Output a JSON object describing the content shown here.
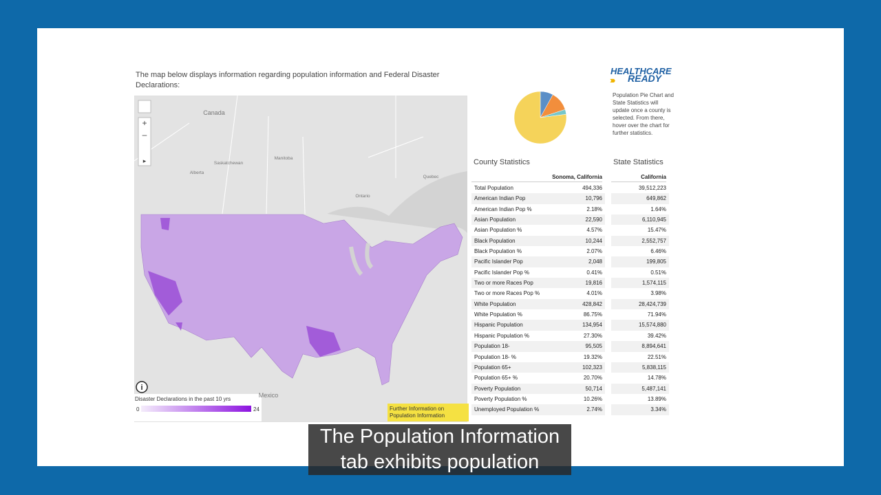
{
  "header": {
    "intro": "The map below displays information regarding population information and Federal Disaster Declarations:"
  },
  "logo": {
    "line1": "HEALTHCARE",
    "line2": "READY"
  },
  "note": "Population Pie Chart and State Statistics will update once a county is selected. From there, hover over the chart for further statistics.",
  "map": {
    "labels": [
      "Canada",
      "Alberta",
      "Saskatchewan",
      "Manitoba",
      "Ontario",
      "Quebec",
      "Mexico"
    ],
    "legend": {
      "title": "Disaster Declarations in the past 10 yrs",
      "min": 0,
      "max": 24
    },
    "button": "Further Information on Population Information"
  },
  "pie": {
    "type": "pie",
    "slices": [
      {
        "color": "#5b8fc7",
        "value": 8
      },
      {
        "color": "#f28e3c",
        "value": 12
      },
      {
        "color": "#76c7c9",
        "value": 3
      },
      {
        "color": "#f5d35a",
        "value": 77
      }
    ]
  },
  "county": {
    "title": "County Statistics",
    "column": "Sonoma, California",
    "rows": [
      [
        "Total Population",
        "494,336"
      ],
      [
        "American Indian Pop",
        "10,796"
      ],
      [
        "American Indian Pop %",
        "2.18%"
      ],
      [
        "Asian Population",
        "22,590"
      ],
      [
        "Asian Population %",
        "4.57%"
      ],
      [
        "Black Population",
        "10,244"
      ],
      [
        "Black Population %",
        "2.07%"
      ],
      [
        "Pacific Islander Pop",
        "2,048"
      ],
      [
        "Pacific Islander Pop %",
        "0.41%"
      ],
      [
        "Two or more Races Pop",
        "19,816"
      ],
      [
        "Two or more Races Pop %",
        "4.01%"
      ],
      [
        "White Population",
        "428,842"
      ],
      [
        "White Population %",
        "86.75%"
      ],
      [
        "Hispanic Population",
        "134,954"
      ],
      [
        "Hispanic Population %",
        "27.30%"
      ],
      [
        "Population 18-",
        "95,505"
      ],
      [
        "Population 18- %",
        "19.32%"
      ],
      [
        "Population 65+",
        "102,323"
      ],
      [
        "Population 65+ %",
        "20.70%"
      ],
      [
        "Poverty Population",
        "50,714"
      ],
      [
        "Poverty Population %",
        "10.26%"
      ],
      [
        "Unemployed Population %",
        "2.74%"
      ]
    ]
  },
  "state": {
    "title": "State Statistics",
    "column": "California",
    "values": [
      "39,512,223",
      "649,862",
      "1.64%",
      "6,110,945",
      "15.47%",
      "2,552,757",
      "6.46%",
      "199,805",
      "0.51%",
      "1,574,115",
      "3.98%",
      "28,424,739",
      "71.94%",
      "15,574,880",
      "39.42%",
      "8,894,641",
      "22.51%",
      "5,838,115",
      "14.78%",
      "5,487,141",
      "13.89%",
      "3.34%"
    ]
  },
  "caption": {
    "lines": [
      "The Population Information",
      "tab exhibits population"
    ]
  }
}
